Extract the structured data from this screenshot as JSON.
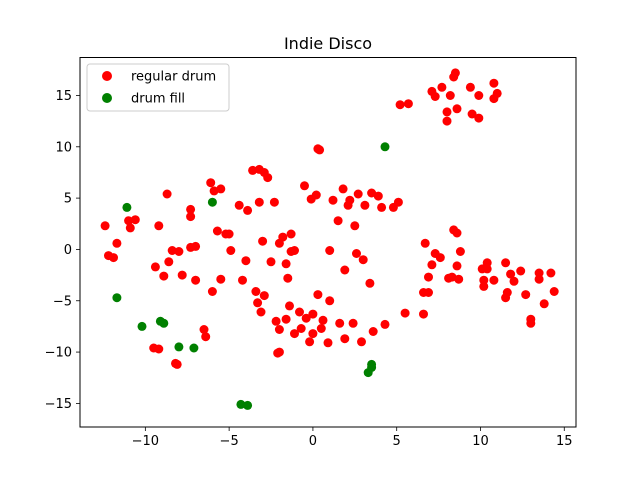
{
  "chart_data": {
    "type": "scatter",
    "title": "Indie Disco",
    "xlabel": "",
    "ylabel": "",
    "xlim": [
      -13.9,
      15.7
    ],
    "ylim": [
      -17.3,
      18.7
    ],
    "xticks": [
      -10,
      -5,
      0,
      5,
      10,
      15
    ],
    "yticks": [
      -15,
      -10,
      -5,
      0,
      5,
      10,
      15
    ],
    "grid": false,
    "legend_position": "top-left",
    "series": [
      {
        "name": "regular drum",
        "color": "#ff0000",
        "points": [
          [
            -12.4,
            2.3
          ],
          [
            -12.2,
            -0.6
          ],
          [
            -11.9,
            -0.8
          ],
          [
            -11.7,
            0.6
          ],
          [
            -11.0,
            2.8
          ],
          [
            -10.9,
            2.1
          ],
          [
            -10.6,
            2.9
          ],
          [
            -9.5,
            -9.6
          ],
          [
            -9.2,
            -9.7
          ],
          [
            -9.4,
            -1.7
          ],
          [
            -9.2,
            2.3
          ],
          [
            -8.9,
            -2.6
          ],
          [
            -8.7,
            5.4
          ],
          [
            -8.6,
            -1.2
          ],
          [
            -8.4,
            -0.1
          ],
          [
            -8.2,
            -11.1
          ],
          [
            -8.1,
            -11.2
          ],
          [
            -8.0,
            -0.2
          ],
          [
            -7.8,
            -2.5
          ],
          [
            -7.3,
            0.2
          ],
          [
            -7.3,
            3.2
          ],
          [
            -7.3,
            3.9
          ],
          [
            -7.0,
            0.3
          ],
          [
            -7.0,
            -3.0
          ],
          [
            -6.5,
            -7.8
          ],
          [
            -6.4,
            -8.5
          ],
          [
            -6.1,
            6.5
          ],
          [
            -6.0,
            -4.1
          ],
          [
            -5.9,
            5.7
          ],
          [
            -5.7,
            1.8
          ],
          [
            -5.5,
            -2.9
          ],
          [
            -5.5,
            5.9
          ],
          [
            -5.2,
            1.5
          ],
          [
            -5.0,
            1.5
          ],
          [
            -4.9,
            -0.1
          ],
          [
            -4.4,
            4.3
          ],
          [
            -4.2,
            -3.0
          ],
          [
            -4.0,
            -1.1
          ],
          [
            -3.9,
            3.8
          ],
          [
            -3.6,
            7.7
          ],
          [
            -3.4,
            -4.1
          ],
          [
            -3.3,
            -5.2
          ],
          [
            -3.2,
            7.8
          ],
          [
            -3.2,
            4.6
          ],
          [
            -3.1,
            -6.1
          ],
          [
            -3.0,
            0.8
          ],
          [
            -2.9,
            -4.5
          ],
          [
            -2.9,
            7.5
          ],
          [
            -2.7,
            7.0
          ],
          [
            -2.5,
            -1.2
          ],
          [
            -2.3,
            4.6
          ],
          [
            -2.2,
            -7.0
          ],
          [
            -2.1,
            -10.1
          ],
          [
            -2.0,
            -10.0
          ],
          [
            -2.0,
            -7.8
          ],
          [
            -2.0,
            0.6
          ],
          [
            -1.8,
            1.2
          ],
          [
            -1.6,
            -6.8
          ],
          [
            -1.6,
            -1.4
          ],
          [
            -1.5,
            -2.8
          ],
          [
            -1.4,
            -5.5
          ],
          [
            -1.3,
            -0.2
          ],
          [
            -1.3,
            1.5
          ],
          [
            -1.1,
            -0.1
          ],
          [
            -1.1,
            -8.2
          ],
          [
            -0.8,
            -6.1
          ],
          [
            -0.7,
            -7.7
          ],
          [
            -0.5,
            6.2
          ],
          [
            -0.4,
            -6.7
          ],
          [
            -0.2,
            -9.0
          ],
          [
            -0.1,
            4.9
          ],
          [
            0.0,
            -6.3
          ],
          [
            0.0,
            -8.2
          ],
          [
            0.2,
            5.3
          ],
          [
            0.3,
            -4.4
          ],
          [
            0.3,
            9.8
          ],
          [
            0.4,
            9.7
          ],
          [
            0.5,
            -7.7
          ],
          [
            0.6,
            -6.9
          ],
          [
            0.9,
            -9.1
          ],
          [
            1.0,
            -0.1
          ],
          [
            1.0,
            -5.0
          ],
          [
            1.2,
            4.8
          ],
          [
            1.5,
            2.8
          ],
          [
            1.6,
            -7.2
          ],
          [
            1.8,
            5.9
          ],
          [
            1.9,
            -2.0
          ],
          [
            1.9,
            -8.7
          ],
          [
            2.1,
            4.3
          ],
          [
            2.2,
            4.8
          ],
          [
            2.4,
            -7.2
          ],
          [
            2.5,
            2.3
          ],
          [
            2.6,
            -0.4
          ],
          [
            2.7,
            5.4
          ],
          [
            2.9,
            -9.0
          ],
          [
            3.0,
            -1.0
          ],
          [
            3.1,
            4.3
          ],
          [
            3.4,
            -3.3
          ],
          [
            3.5,
            5.5
          ],
          [
            3.6,
            -8.0
          ],
          [
            3.9,
            5.2
          ],
          [
            4.1,
            4.1
          ],
          [
            4.3,
            -7.3
          ],
          [
            4.8,
            4.1
          ],
          [
            5.1,
            4.6
          ],
          [
            5.2,
            14.1
          ],
          [
            5.5,
            -6.2
          ],
          [
            5.7,
            14.2
          ],
          [
            6.6,
            -4.2
          ],
          [
            6.6,
            -6.3
          ],
          [
            6.7,
            0.6
          ],
          [
            6.9,
            -2.7
          ],
          [
            6.9,
            -4.2
          ],
          [
            7.1,
            -1.5
          ],
          [
            7.1,
            15.4
          ],
          [
            7.3,
            14.9
          ],
          [
            7.3,
            -0.4
          ],
          [
            7.6,
            -0.8
          ],
          [
            7.7,
            15.8
          ],
          [
            8.0,
            12.5
          ],
          [
            8.0,
            13.4
          ],
          [
            8.1,
            -2.8
          ],
          [
            8.2,
            15.0
          ],
          [
            8.3,
            -2.7
          ],
          [
            8.4,
            16.8
          ],
          [
            8.4,
            1.9
          ],
          [
            8.5,
            17.2
          ],
          [
            8.6,
            -1.6
          ],
          [
            8.6,
            1.6
          ],
          [
            8.6,
            13.7
          ],
          [
            8.7,
            -2.9
          ],
          [
            8.8,
            -0.2
          ],
          [
            9.4,
            15.8
          ],
          [
            9.5,
            13.2
          ],
          [
            9.9,
            12.8
          ],
          [
            9.9,
            15.0
          ],
          [
            10.1,
            -1.9
          ],
          [
            10.2,
            -3.0
          ],
          [
            10.2,
            -3.6
          ],
          [
            10.4,
            -1.9
          ],
          [
            10.4,
            -1.3
          ],
          [
            10.8,
            -3.0
          ],
          [
            10.8,
            16.2
          ],
          [
            10.8,
            14.7
          ],
          [
            11.0,
            15.2
          ],
          [
            11.5,
            -4.7
          ],
          [
            11.5,
            -1.3
          ],
          [
            11.6,
            -4.2
          ],
          [
            11.8,
            -2.4
          ],
          [
            12.0,
            -3.1
          ],
          [
            12.4,
            -2.1
          ],
          [
            12.7,
            -4.4
          ],
          [
            13.0,
            -6.8
          ],
          [
            13.0,
            -7.2
          ],
          [
            13.5,
            -2.3
          ],
          [
            13.5,
            -2.9
          ],
          [
            13.8,
            -5.3
          ],
          [
            14.2,
            -2.3
          ],
          [
            14.4,
            -4.1
          ]
        ]
      },
      {
        "name": "drum fill",
        "color": "#008000",
        "points": [
          [
            -11.7,
            -4.7
          ],
          [
            -11.1,
            4.1
          ],
          [
            -10.2,
            -7.5
          ],
          [
            -9.1,
            -7.0
          ],
          [
            -8.9,
            -7.2
          ],
          [
            -8.0,
            -9.5
          ],
          [
            -7.1,
            -9.6
          ],
          [
            -6.0,
            4.6
          ],
          [
            -4.3,
            -15.1
          ],
          [
            -3.9,
            -15.2
          ],
          [
            3.3,
            -12.0
          ],
          [
            3.5,
            -11.5
          ],
          [
            3.5,
            -11.2
          ],
          [
            4.3,
            10.0
          ]
        ]
      }
    ]
  }
}
